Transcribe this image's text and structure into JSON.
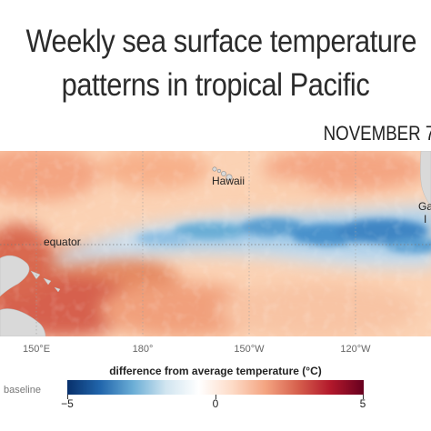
{
  "title": {
    "line1": "Weekly sea surface temperature",
    "line2": "patterns in tropical Pacific"
  },
  "date": "NOVEMBER 7",
  "map": {
    "labels": {
      "hawaii": "Hawaii",
      "equator": "equator",
      "galapagos_partial_1": "Ga",
      "galapagos_partial_2": "I"
    },
    "longitude_ticks": [
      "150°E",
      "180°",
      "150°W",
      "120°W"
    ]
  },
  "colorbar": {
    "title": "difference from average temperature (°C)",
    "baseline_label": "baseline",
    "min_label": "−5",
    "mid_label": "0",
    "max_label": "5",
    "colors": [
      "#08306b",
      "#2166ac",
      "#6baed6",
      "#d1e5f0",
      "#ffffff",
      "#fddbc7",
      "#f4a582",
      "#d6604d",
      "#b2182b",
      "#67001f"
    ]
  }
}
